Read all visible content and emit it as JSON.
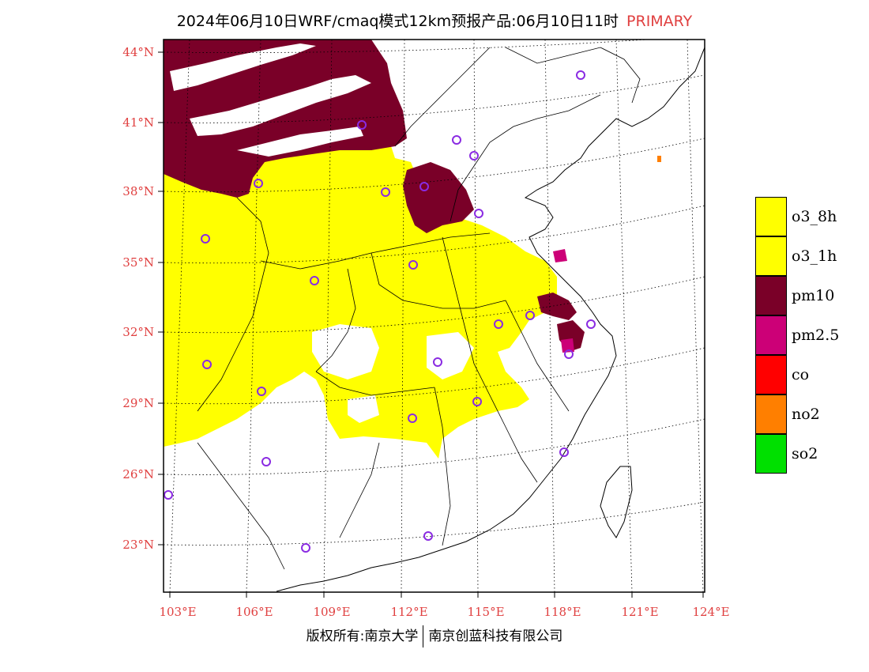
{
  "title": {
    "text": "2024年06月10日WRF/cmaq模式12km预报产品:06月10日11时",
    "tag": "PRIMARY"
  },
  "map": {
    "lat_labels": [
      "44°N",
      "41°N",
      "38°N",
      "35°N",
      "32°N",
      "29°N",
      "26°N",
      "23°N"
    ],
    "lon_labels": [
      "103°E",
      "106°E",
      "109°E",
      "112°E",
      "115°E",
      "118°E",
      "121°E",
      "124°E"
    ],
    "colors": {
      "o3": "#ffff00",
      "pm10": "#7a0028",
      "pm25": "#cc0077",
      "no2": "#ff7f00",
      "station": "#8a2be2",
      "border": "#000000",
      "grid": "#000000"
    }
  },
  "legend": [
    {
      "label": "o3_8h",
      "color": "#ffff00"
    },
    {
      "label": "o3_1h",
      "color": "#ffff00"
    },
    {
      "label": "pm10",
      "color": "#7a0028"
    },
    {
      "label": "pm2.5",
      "color": "#cc0077"
    },
    {
      "label": "co",
      "color": "#ff0000"
    },
    {
      "label": "no2",
      "color": "#ff7f00"
    },
    {
      "label": "so2",
      "color": "#00e000"
    }
  ],
  "copyright": {
    "left": "版权所有:南京大学",
    "right": "南京创蓝科技有限公司"
  }
}
